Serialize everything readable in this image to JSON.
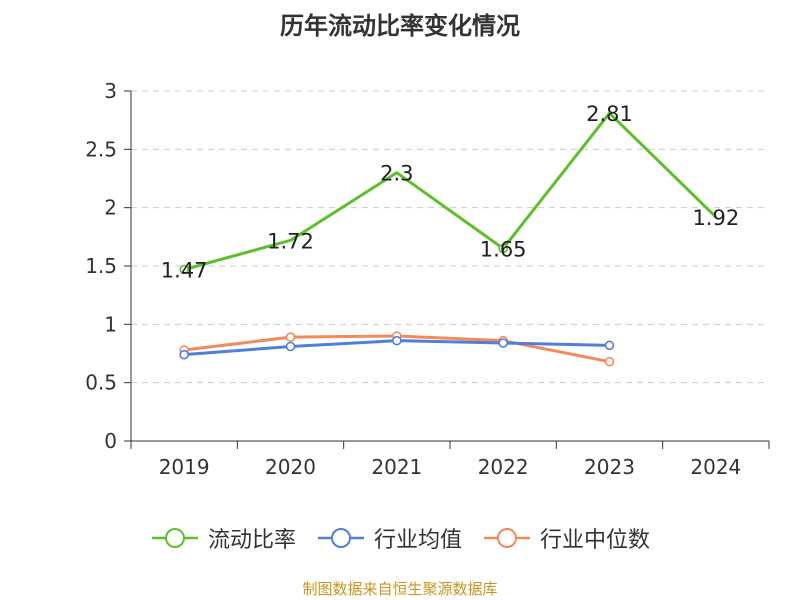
{
  "chart_data": {
    "type": "line",
    "title": "历年流动比率变化情况",
    "categories": [
      "2019",
      "2020",
      "2021",
      "2022",
      "2023",
      "2024"
    ],
    "ylim": [
      0,
      3
    ],
    "yticks": [
      "0",
      "0.5",
      "1",
      "1.5",
      "2",
      "2.5",
      "3"
    ],
    "grid": true,
    "legend_position": "bottom",
    "series": [
      {
        "name": "流动比率",
        "color": "#5cc02a",
        "values": [
          1.47,
          1.72,
          2.3,
          1.65,
          2.81,
          1.92
        ],
        "labels": [
          "1.47",
          "1.72",
          "2.3",
          "1.65",
          "2.81",
          "1.92"
        ]
      },
      {
        "name": "行业均值",
        "color": "#4f7fd8",
        "values": [
          0.74,
          0.81,
          0.86,
          0.84,
          0.82,
          null
        ]
      },
      {
        "name": "行业中位数",
        "color": "#f48a5a",
        "values": [
          0.78,
          0.89,
          0.9,
          0.86,
          0.68,
          null
        ]
      }
    ]
  },
  "source": "制图数据来自恒生聚源数据库"
}
